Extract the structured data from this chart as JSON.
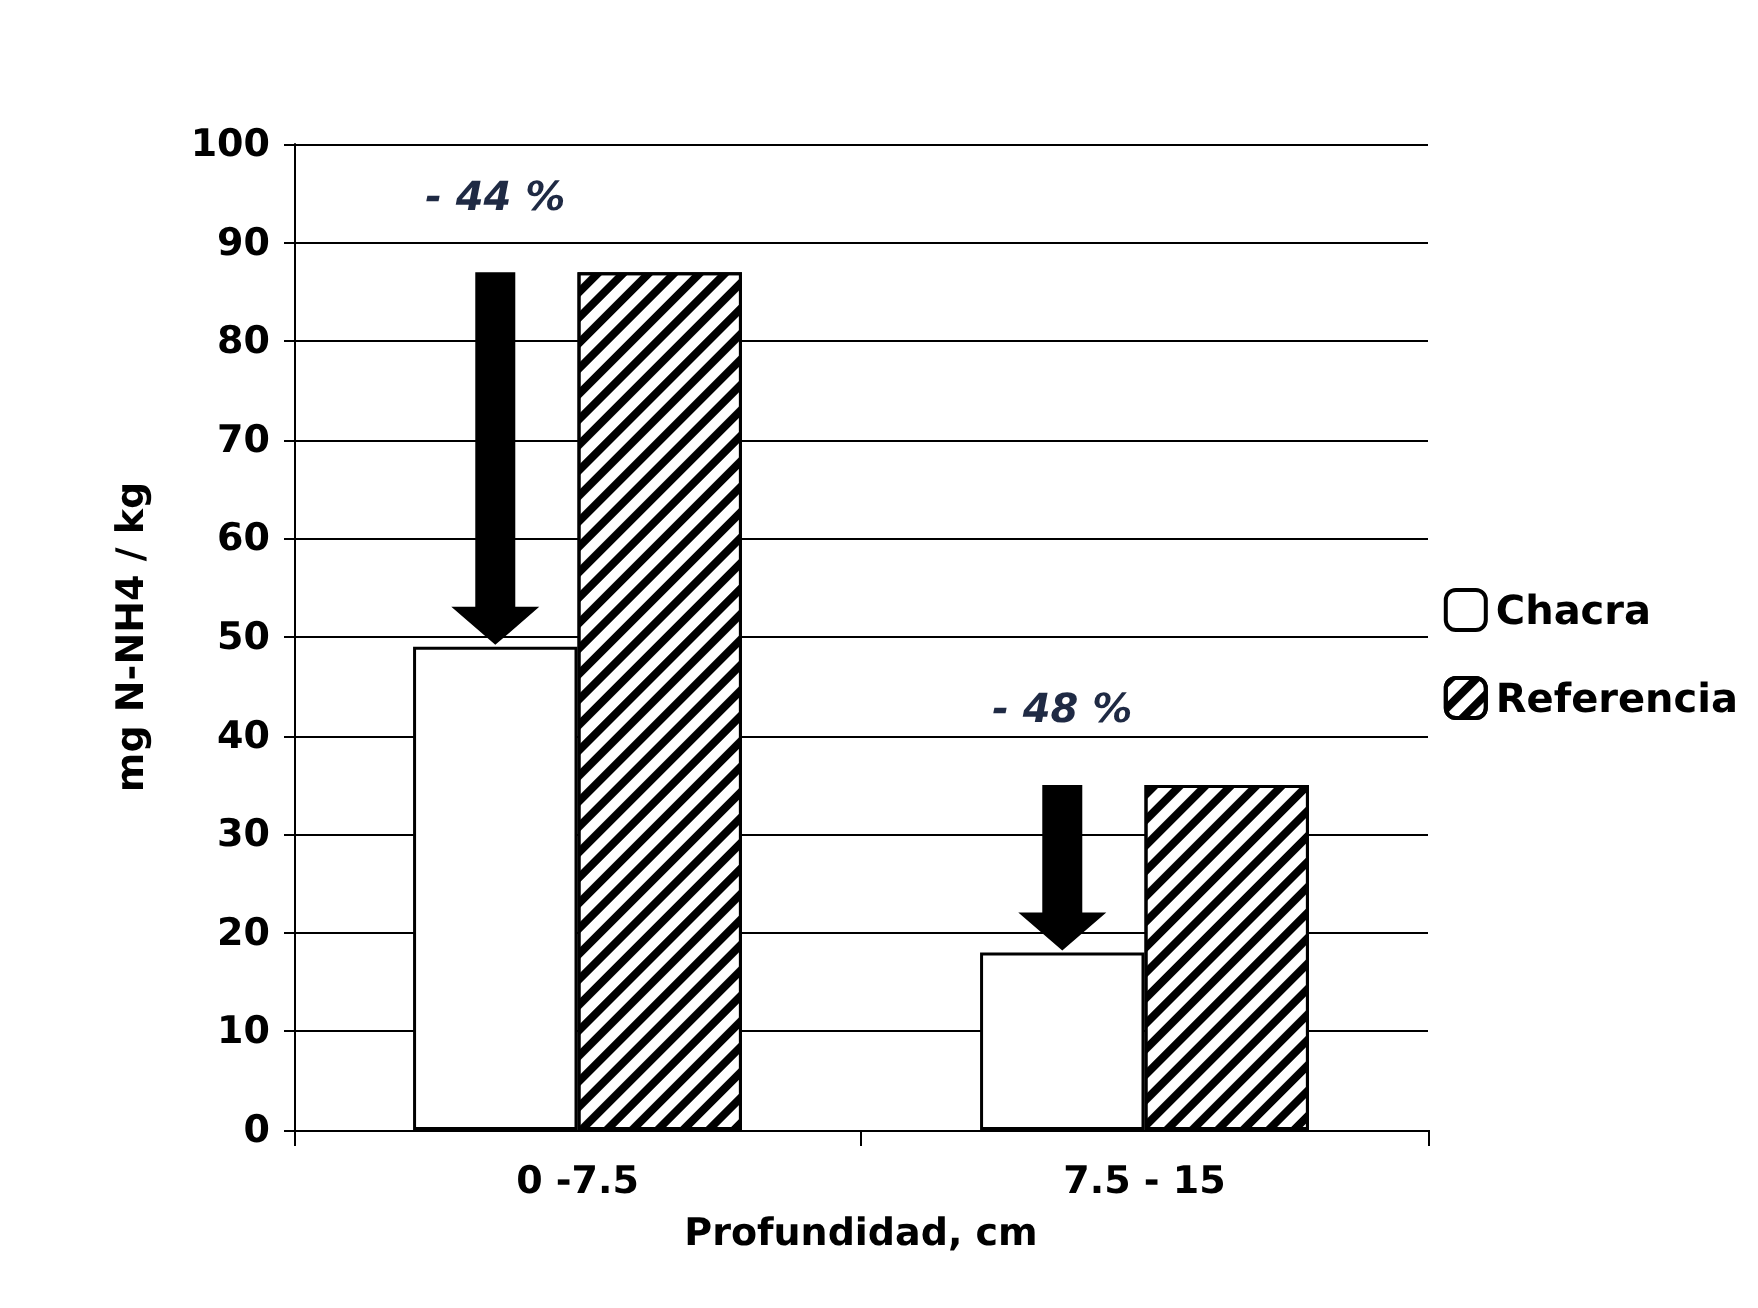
{
  "chart_data": {
    "type": "bar",
    "xlabel": "Profundidad, cm",
    "ylabel": "mg N-NH4 / kg",
    "categories": [
      "0 -7.5",
      "7.5 - 15"
    ],
    "series": [
      {
        "name": "Chacra",
        "color": "#ffffff",
        "values": [
          49,
          18
        ]
      },
      {
        "name": "Referencia",
        "color": "#000000",
        "values": [
          87,
          35
        ]
      }
    ],
    "ylim": [
      0,
      100
    ],
    "yticks": [
      0,
      10,
      20,
      30,
      40,
      50,
      60,
      70,
      80,
      90,
      100
    ],
    "grid": "y",
    "legend": "right",
    "annotations": [
      "- 44 %",
      "- 48 %"
    ]
  }
}
